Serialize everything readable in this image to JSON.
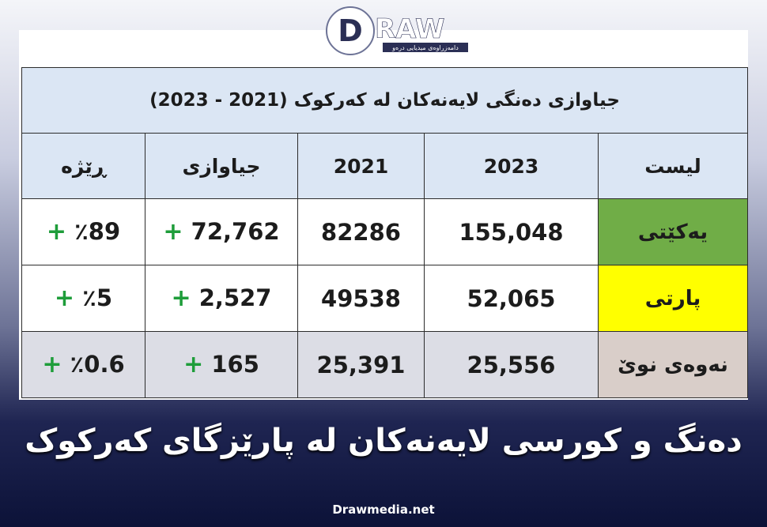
{
  "logo": {
    "letter": "D",
    "rest": "RAW",
    "tagline": "دامەزراوەی میدیایی درەو"
  },
  "table": {
    "title": "جیاوازی دەنگی لایەنەکان لە کەرکوک (2021 - 2023)",
    "columns": [
      "لیست",
      "2023",
      "2021",
      "جیاوازی",
      "ڕێژە"
    ],
    "rows": [
      {
        "party": "یەکێتی",
        "votes_2023": "155,048",
        "votes_2021": "82286",
        "difference": {
          "sign": "+",
          "value": "72,762"
        },
        "ratio": {
          "sign": "+",
          "value": "٪89"
        }
      },
      {
        "party": "پارتی",
        "votes_2023": "52,065",
        "votes_2021": "49538",
        "difference": {
          "sign": "+",
          "value": "2,527"
        },
        "ratio": {
          "sign": "+",
          "value": "٪5"
        }
      },
      {
        "party": "نەوەی نوێ",
        "votes_2023": "25,556",
        "votes_2021": "25,391",
        "difference": {
          "sign": "+",
          "value": "165"
        },
        "ratio": {
          "sign": "+",
          "value": "٪0.6"
        }
      }
    ]
  },
  "caption": "دەنگ و کورسی لایەنەکان لە پارێزگای کەرکوک",
  "footer": "Drawmedia.net"
}
